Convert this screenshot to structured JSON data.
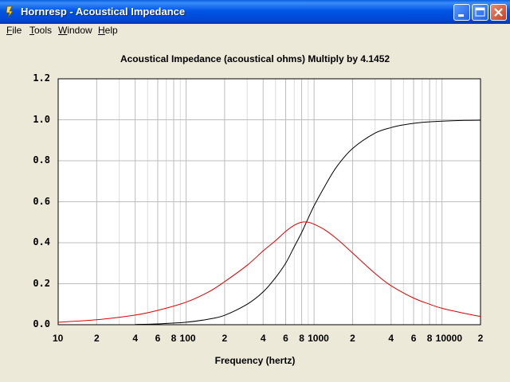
{
  "window": {
    "title": "Hornresp - Acoustical Impedance"
  },
  "menu": [
    {
      "label": "File",
      "key": "F",
      "rest": "ile"
    },
    {
      "label": "Tools",
      "key": "T",
      "rest": "ools"
    },
    {
      "label": "Window",
      "key": "W",
      "rest": "indow"
    },
    {
      "label": "Help",
      "key": "H",
      "rest": "elp"
    }
  ],
  "chart_data": {
    "type": "line",
    "title": "Acoustical Impedance (acoustical ohms)   Multiply by 4.1452",
    "xlabel": "Frequency (hertz)",
    "ylabel": "",
    "xscale": "log",
    "xlim": [
      10,
      20000
    ],
    "ylim": [
      0,
      1.2
    ],
    "y_ticks": [
      "0.0",
      "0.2",
      "0.4",
      "0.6",
      "0.8",
      "1.0",
      "1.2"
    ],
    "x_ticks": [
      {
        "value": 10,
        "label": "10"
      },
      {
        "value": 20,
        "label": "2"
      },
      {
        "value": 40,
        "label": "4"
      },
      {
        "value": 60,
        "label": "6"
      },
      {
        "value": 80,
        "label": "8"
      },
      {
        "value": 100,
        "label": "100"
      },
      {
        "value": 200,
        "label": "2"
      },
      {
        "value": 400,
        "label": "4"
      },
      {
        "value": 600,
        "label": "6"
      },
      {
        "value": 800,
        "label": "8"
      },
      {
        "value": 1000,
        "label": "1000"
      },
      {
        "value": 2000,
        "label": "2"
      },
      {
        "value": 4000,
        "label": "4"
      },
      {
        "value": 6000,
        "label": "6"
      },
      {
        "value": 8000,
        "label": "8"
      },
      {
        "value": 10000,
        "label": "10000"
      },
      {
        "value": 20000,
        "label": "2"
      }
    ],
    "grid": true,
    "series": [
      {
        "color": "#000000",
        "x": [
          40,
          60,
          100,
          150,
          200,
          300,
          400,
          500,
          600,
          700,
          800,
          900,
          1000,
          1200,
          1500,
          2000,
          3000,
          4000,
          5000,
          7000,
          10000,
          15000,
          20000
        ],
        "y": [
          0.001,
          0.004,
          0.012,
          0.027,
          0.046,
          0.1,
          0.16,
          0.23,
          0.3,
          0.38,
          0.45,
          0.52,
          0.58,
          0.67,
          0.77,
          0.86,
          0.935,
          0.962,
          0.975,
          0.987,
          0.993,
          0.997,
          0.998
        ]
      },
      {
        "color": "#e00000",
        "x": [
          10,
          20,
          40,
          60,
          100,
          150,
          200,
          300,
          400,
          500,
          600,
          700,
          800,
          900,
          1000,
          1200,
          1500,
          2000,
          3000,
          4000,
          6000,
          8000,
          10000,
          15000,
          20000
        ],
        "y": [
          0.012,
          0.024,
          0.047,
          0.07,
          0.11,
          0.16,
          0.21,
          0.29,
          0.36,
          0.41,
          0.455,
          0.485,
          0.5,
          0.5,
          0.49,
          0.465,
          0.42,
          0.35,
          0.25,
          0.19,
          0.13,
          0.1,
          0.08,
          0.055,
          0.04
        ]
      }
    ]
  }
}
